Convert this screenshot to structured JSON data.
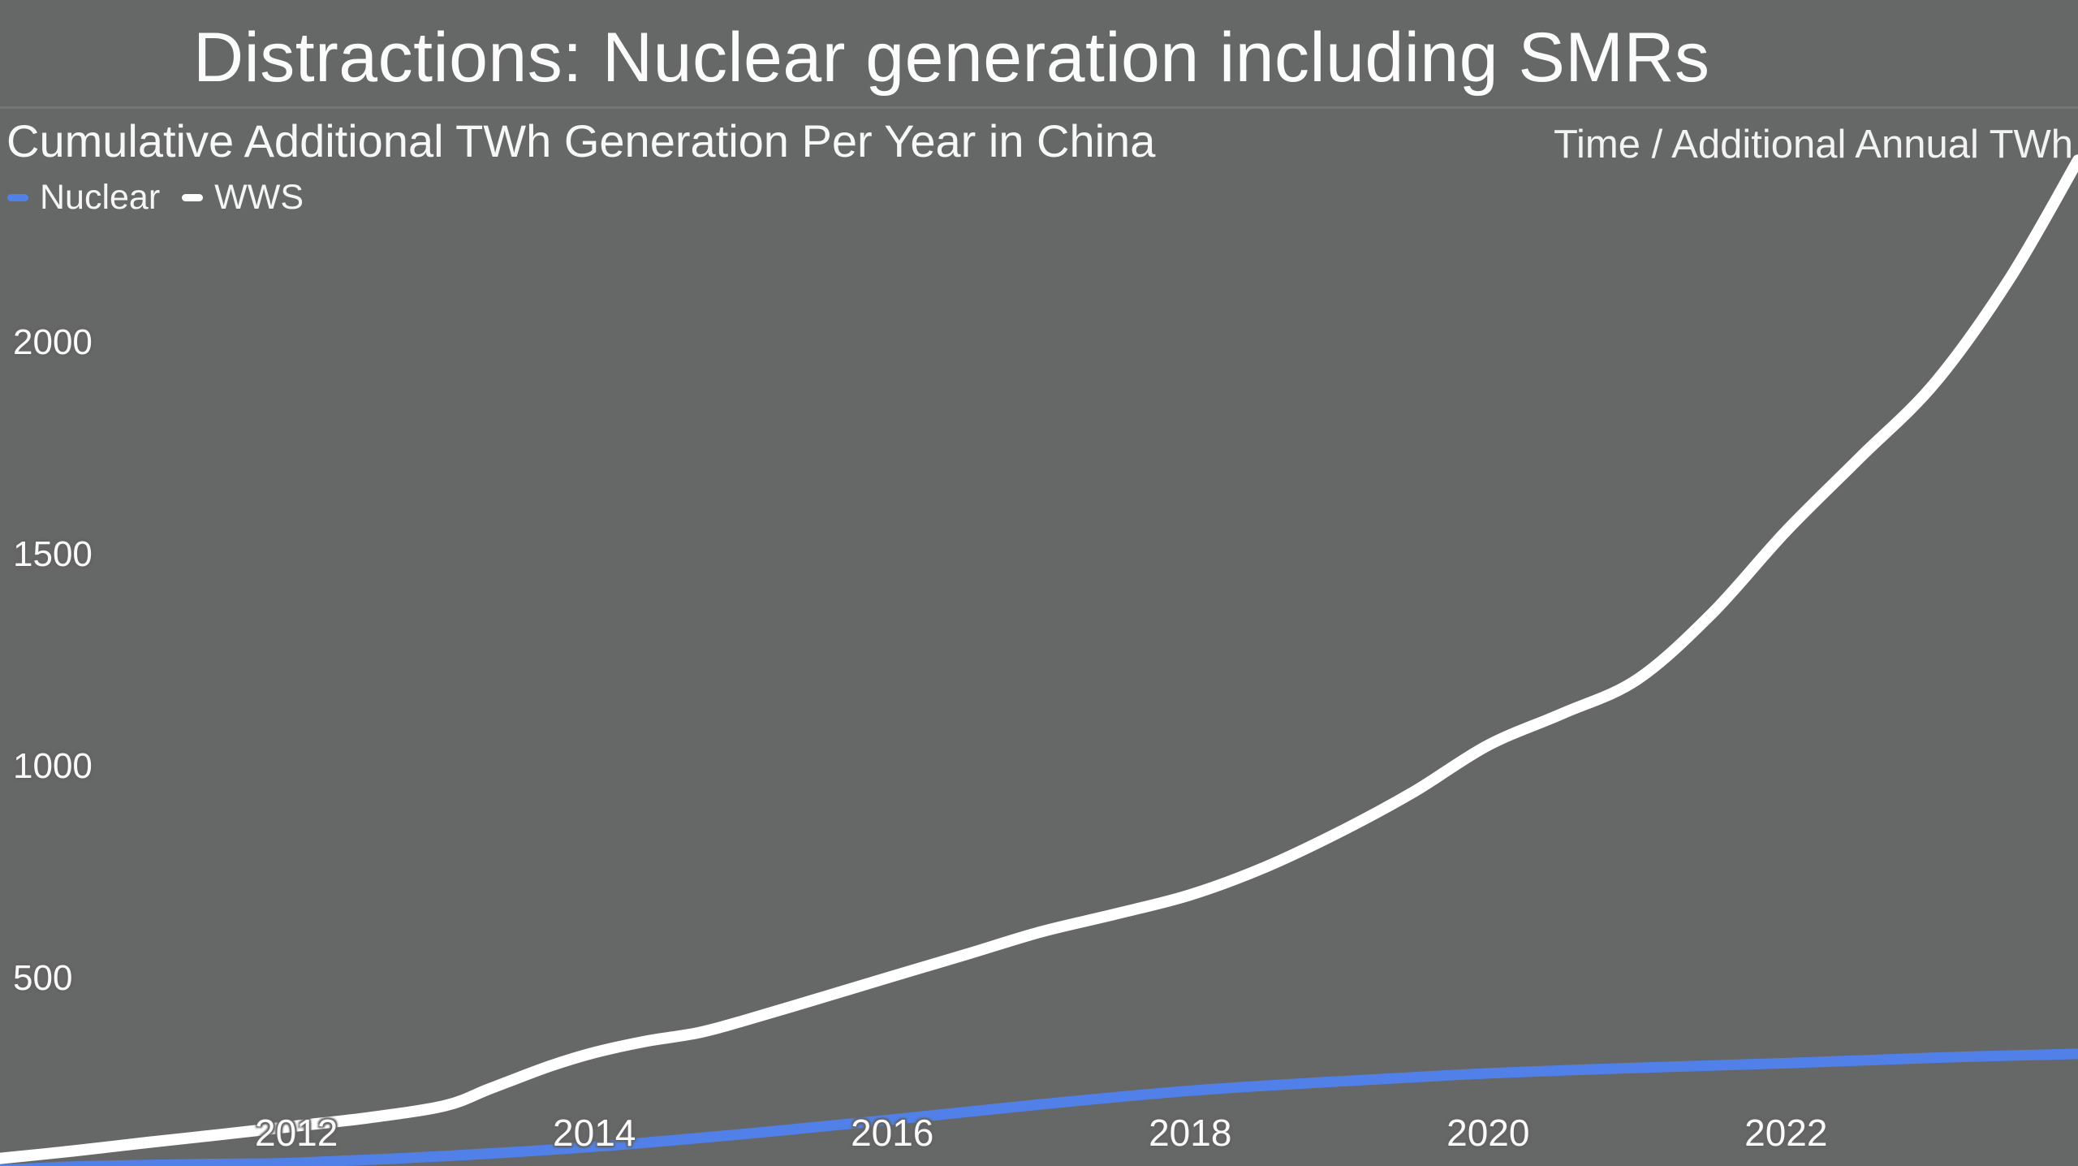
{
  "slide": {
    "title": "Distractions: Nuclear generation including SMRs"
  },
  "chart": {
    "title": "Cumulative Additional TWh Generation Per Year in China",
    "axis_hint": "Time / Additional Annual TWh"
  },
  "colors": {
    "background": "#666767",
    "text": "#fafafa",
    "nuclear_blue": "#5181e8",
    "wws_white": "#ffffff",
    "divider": "#787878"
  },
  "chart_data": {
    "type": "line",
    "title": "Cumulative Additional TWh Generation Per Year in China",
    "xlabel": "Time",
    "ylabel": "Additional Annual TWh",
    "grid": false,
    "legend_position": "top-left",
    "xlim": [
      2010.01,
      2023.96
    ],
    "ylim_visible": [
      57.5,
      2808
    ],
    "x_ticks": [
      2012,
      2014,
      2016,
      2018,
      2020,
      2022
    ],
    "y_ticks": [
      500,
      1000,
      1500,
      2000
    ],
    "series": [
      {
        "name": "Nuclear",
        "color": "#5181e8",
        "stroke_width": 13,
        "points": [
          [
            2010.0,
            48
          ],
          [
            2010.5,
            56
          ],
          [
            2011.0,
            60
          ],
          [
            2011.5,
            62.5
          ],
          [
            2012.0,
            65
          ],
          [
            2013.0,
            81
          ],
          [
            2014.0,
            103
          ],
          [
            2015.0,
            133
          ],
          [
            2016.0,
            167
          ],
          [
            2017.0,
            203
          ],
          [
            2018.0,
            235
          ],
          [
            2019.0,
            257
          ],
          [
            2020.0,
            276
          ],
          [
            2021.0,
            289
          ],
          [
            2022.0,
            300
          ],
          [
            2023.0,
            313
          ],
          [
            2023.96,
            322
          ]
        ]
      },
      {
        "name": "WWS",
        "color": "#ffffff",
        "stroke_width": 14,
        "points": [
          [
            2010.0,
            75
          ],
          [
            2010.5,
            93
          ],
          [
            2011.0,
            113
          ],
          [
            2011.5,
            132
          ],
          [
            2012.0,
            152
          ],
          [
            2012.5,
            172
          ],
          [
            2013.0,
            200
          ],
          [
            2013.3,
            240
          ],
          [
            2013.7,
            293
          ],
          [
            2014.0,
            325
          ],
          [
            2014.35,
            352
          ],
          [
            2014.7,
            372
          ],
          [
            2015.0,
            400
          ],
          [
            2015.5,
            452
          ],
          [
            2016.0,
            505
          ],
          [
            2016.5,
            557
          ],
          [
            2017.0,
            610
          ],
          [
            2017.5,
            652
          ],
          [
            2018.0,
            697
          ],
          [
            2018.5,
            762
          ],
          [
            2019.0,
            845
          ],
          [
            2019.5,
            940
          ],
          [
            2020.0,
            1050
          ],
          [
            2020.5,
            1125
          ],
          [
            2021.0,
            1205
          ],
          [
            2021.5,
            1360
          ],
          [
            2022.0,
            1555
          ],
          [
            2022.5,
            1730
          ],
          [
            2023.0,
            1905
          ],
          [
            2023.5,
            2150
          ],
          [
            2023.96,
            2430
          ]
        ]
      }
    ]
  }
}
